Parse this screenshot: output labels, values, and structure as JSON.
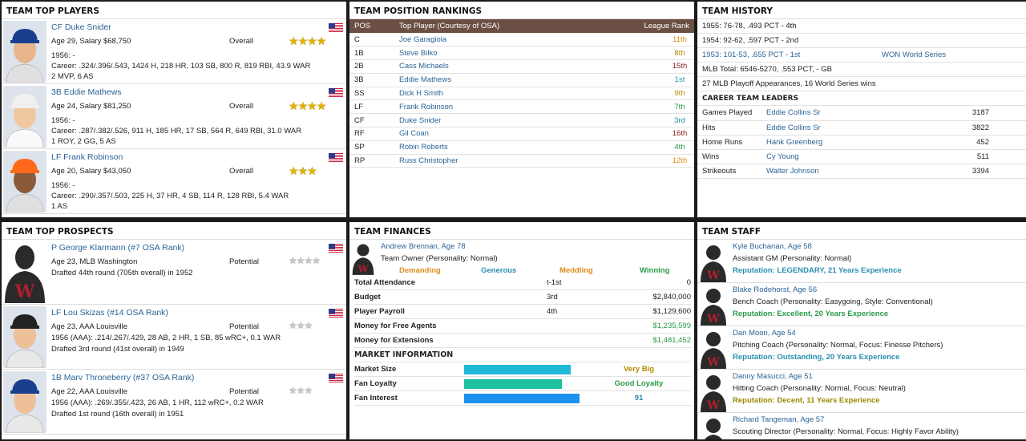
{
  "colors": {
    "accent_blue": "#2a6496",
    "panel_header": "#6b4f44",
    "gold": "#b58a00",
    "green": "#2a9a48",
    "teal": "#2a8fb0",
    "orange": "#e08a1a",
    "red": "#8b1a1a"
  },
  "top_players": {
    "title": "TEAM TOP PLAYERS",
    "players": [
      {
        "name": "CF Duke Snider",
        "age_salary": "Age 29, Salary $68,750",
        "label": "Overall",
        "stars": 4,
        "stars_max": 4,
        "season": "1956: -",
        "career": "Career: .324/.396/.543, 1424 H, 218 HR, 103 SB, 800 R, 819 RBI, 43.9 WAR",
        "awards": "2 MVP, 6 AS",
        "flag": "us-flag-icon"
      },
      {
        "name": "3B Eddie Mathews",
        "age_salary": "Age 24, Salary $81,250",
        "label": "Overall",
        "stars": 4,
        "stars_max": 4,
        "season": "1956: -",
        "career": "Career: .287/.382/.526, 911 H, 185 HR, 17 SB, 564 R, 649 RBI, 31.0 WAR",
        "awards": "1 ROY, 2 GG, 5 AS",
        "flag": "us-flag-icon"
      },
      {
        "name": "LF Frank Robinson",
        "age_salary": "Age 20, Salary $43,050",
        "label": "Overall",
        "stars": 3,
        "stars_max": 3,
        "season": "1956: -",
        "career": "Career: .290/.357/.503, 225 H, 37 HR, 4 SB, 114 R, 128 RBI, 5.4 WAR",
        "awards": "1 AS",
        "flag": "us-flag-icon"
      }
    ]
  },
  "position_rankings": {
    "title": "TEAM POSITION RANKINGS",
    "headers": {
      "pos": "POS",
      "player": "Top Player (Courtesy of OSA)",
      "rank": "League Rank"
    },
    "rows": [
      {
        "pos": "C",
        "player": "Joe Garagiola",
        "rank": "11th",
        "color": "#e08a1a"
      },
      {
        "pos": "1B",
        "player": "Steve Bilko",
        "rank": "8th",
        "color": "#b58a00"
      },
      {
        "pos": "2B",
        "player": "Cass Michaels",
        "rank": "15th",
        "color": "#8b1a1a"
      },
      {
        "pos": "3B",
        "player": "Eddie Mathews",
        "rank": "1st",
        "color": "#2a8fb0"
      },
      {
        "pos": "SS",
        "player": "Dick H Smith",
        "rank": "9th",
        "color": "#b58a00"
      },
      {
        "pos": "LF",
        "player": "Frank Robinson",
        "rank": "7th",
        "color": "#2a9a48"
      },
      {
        "pos": "CF",
        "player": "Duke Snider",
        "rank": "3rd",
        "color": "#2a8fb0"
      },
      {
        "pos": "RF",
        "player": "Gil Coan",
        "rank": "16th",
        "color": "#8b1a1a"
      },
      {
        "pos": "SP",
        "player": "Robin Roberts",
        "rank": "4th",
        "color": "#2a9a48"
      },
      {
        "pos": "RP",
        "player": "Russ Christopher",
        "rank": "12th",
        "color": "#e08a1a"
      }
    ]
  },
  "history": {
    "title": "TEAM HISTORY",
    "seasons": [
      "1955: 76-78, .493 PCT - 4th",
      "1954: 92-62, .597 PCT - 2nd"
    ],
    "best_season": "1953: 101-53, .655 PCT - 1st",
    "best_result": "WON World Series",
    "mlb_total": "MLB Total: 6546-5270, .553 PCT, - GB",
    "playoffs": "27 MLB Playoff Appearances, 16 World Series wins",
    "leaders_title": "CAREER TEAM LEADERS",
    "leaders": [
      {
        "stat": "Games Played",
        "player": "Eddie Collins Sr",
        "value": "3187"
      },
      {
        "stat": "Hits",
        "player": "Eddie Collins Sr",
        "value": "3822"
      },
      {
        "stat": "Home Runs",
        "player": "Hank Greenberg",
        "value": "452"
      },
      {
        "stat": "Wins",
        "player": "Cy Young",
        "value": "511"
      },
      {
        "stat": "Strikeouts",
        "player": "Walter Johnson",
        "value": "3394"
      }
    ]
  },
  "prospects": {
    "title": "TEAM TOP PROSPECTS",
    "players": [
      {
        "name": "P George Klarmann (#7 OSA Rank)",
        "line1": "Age 23, MLB Washington",
        "label": "Potential",
        "stars": 3.5,
        "line2": "Drafted 44th round (705th overall) in 1952",
        "line3": ""
      },
      {
        "name": "LF Lou Skizas (#14 OSA Rank)",
        "line1": "Age 23, AAA Louisville",
        "label": "Potential",
        "stars": 2.5,
        "line2": "1956 (AAA): .214/.267/.429, 28 AB, 2 HR, 1 SB, 85 wRC+, 0.1 WAR",
        "line3": "Drafted 3rd round (41st overall) in 1949"
      },
      {
        "name": "1B Marv Throneberry (#37 OSA Rank)",
        "line1": "Age 22, AAA Louisville",
        "label": "Potential",
        "stars": 2.5,
        "line2": "1956 (AAA): .269/.355/.423, 26 AB, 1 HR, 112 wRC+, 0.2 WAR",
        "line3": "Drafted 1st round (16th overall) in 1951"
      }
    ]
  },
  "finances": {
    "title": "TEAM FINANCES",
    "owner_name": "Andrew Brennan, Age 78",
    "owner_role": "Team Owner (Personality: Normal)",
    "traits": [
      {
        "label": "Demanding",
        "color": "#e08a1a"
      },
      {
        "label": "Generous",
        "color": "#2a8fb0"
      },
      {
        "label": "Meddling",
        "color": "#e08a1a"
      },
      {
        "label": "Winning",
        "color": "#2a9a48"
      }
    ],
    "rows": [
      {
        "label": "Total Attendance",
        "rank": "t-1st",
        "value": "0",
        "color": "#222"
      },
      {
        "label": "Budget",
        "rank": "3rd",
        "value": "$2,840,000",
        "color": "#222"
      },
      {
        "label": "Player Payroll",
        "rank": "4th",
        "value": "$1,129,600",
        "color": "#222"
      },
      {
        "label": "Money for Free Agents",
        "rank": "",
        "value": "$1,235,599",
        "color": "#2a9a48"
      },
      {
        "label": "Money for Extensions",
        "rank": "",
        "value": "$1,481,452",
        "color": "#2a9a48"
      }
    ],
    "market_title": "MARKET INFORMATION",
    "market": [
      {
        "label": "Market Size",
        "level": 0.92,
        "bar_color": "#1fb8d6",
        "value": "Very Big",
        "value_color": "#b58a00"
      },
      {
        "label": "Fan Loyalty",
        "level": 0.84,
        "bar_color": "#1ec0a0",
        "value": "Good Loyalty",
        "value_color": "#2a9a48"
      },
      {
        "label": "Fan Interest",
        "level": 0.99,
        "bar_color": "#1e90f0",
        "value": "91",
        "value_color": "#2a8fb0"
      }
    ]
  },
  "staff": {
    "title": "TEAM STAFF",
    "members": [
      {
        "name": "Kyle Buchanan, Age 58",
        "role": "Assistant GM (Personality: Normal)",
        "rep": "Reputation: LEGENDARY, 21 Years Experience",
        "rep_color": "#2a8fb0"
      },
      {
        "name": "Blake Rodehorst, Age 56",
        "role": "Bench Coach (Personality: Easygoing, Style: Conventional)",
        "rep": "Reputation: Excellent, 20 Years Experience",
        "rep_color": "#2a9a48"
      },
      {
        "name": "Dan Moon, Age 54",
        "role": "Pitching Coach (Personality: Normal, Focus: Finesse Pitchers)",
        "rep": "Reputation: Outstanding, 20 Years Experience",
        "rep_color": "#2a8fb0"
      },
      {
        "name": "Danny Masucci, Age 51",
        "role": "Hitting Coach (Personality: Normal, Focus: Neutral)",
        "rep": "Reputation: Decent, 11 Years Experience",
        "rep_color": "#9a8a00"
      },
      {
        "name": "Richard Tangeman, Age 57",
        "role": "Scouting Director (Personality: Normal, Focus: Highly Favor Ability)",
        "rep": "",
        "rep_color": "#2a8fb0"
      }
    ]
  }
}
